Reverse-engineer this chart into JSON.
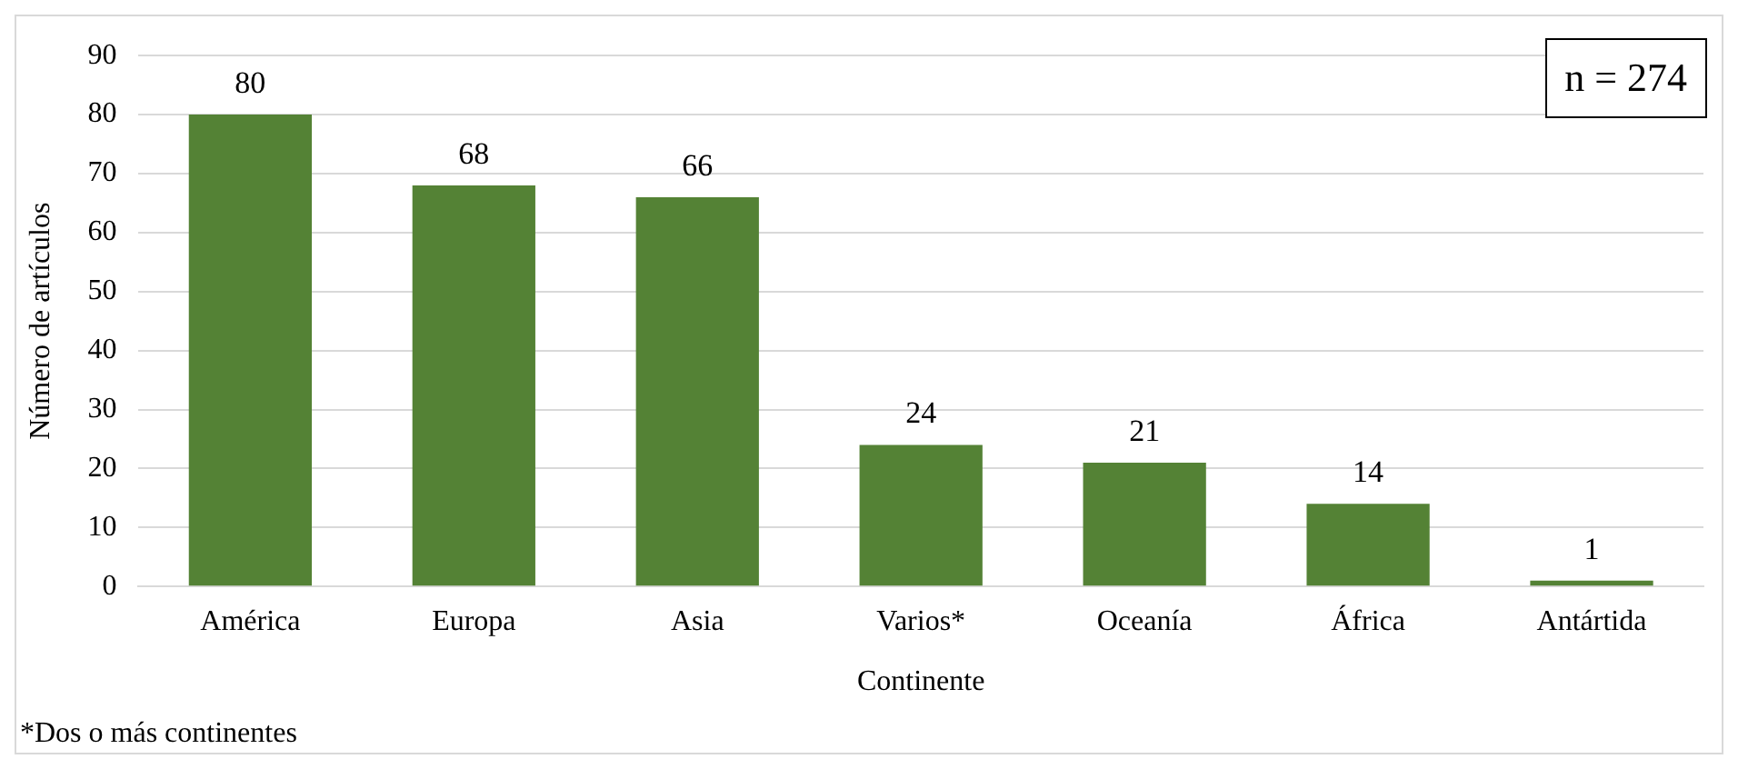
{
  "chart_data": {
    "type": "bar",
    "xlabel": "Continente",
    "ylabel": "Número de artículos",
    "categories": [
      "América",
      "Europa",
      "Asia",
      "Varios*",
      "Oceanía",
      "África",
      "Antártida"
    ],
    "values": [
      80,
      68,
      66,
      24,
      21,
      14,
      1
    ],
    "color": "#548235",
    "ylim": [
      0,
      90
    ],
    "yticks": [
      0,
      10,
      20,
      30,
      40,
      50,
      60,
      70,
      80,
      90
    ],
    "grid": "y",
    "data_labels": true,
    "annotations": [
      "n = 274",
      "*Dos o más continentes"
    ]
  }
}
